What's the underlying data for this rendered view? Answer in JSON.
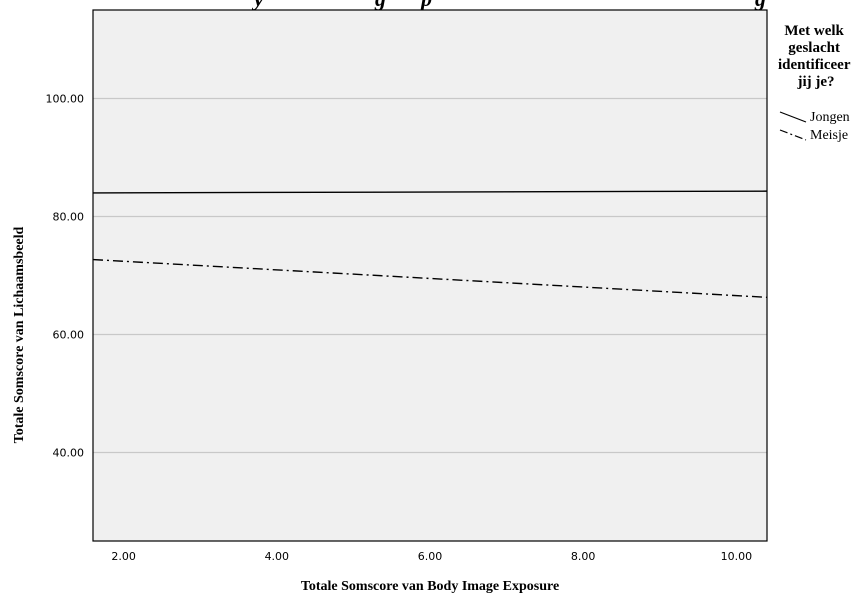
{
  "chart_data": {
    "type": "line",
    "title_fragment_left": "y",
    "title_fragment_mid_a": "g",
    "title_fragment_mid_b": "p",
    "title_fragment_right": "g",
    "xlabel": "Totale Somscore van Body Image Exposure",
    "ylabel": "Totale Somscore van Lichaamsbeeld",
    "xlim": [
      1.6,
      10.4
    ],
    "ylim": [
      25,
      115
    ],
    "x_ticks": [
      "2.00",
      "4.00",
      "6.00",
      "8.00",
      "10.00"
    ],
    "x_tick_values": [
      2,
      4,
      6,
      8,
      10
    ],
    "y_ticks": [
      "40.00",
      "60.00",
      "80.00",
      "100.00"
    ],
    "y_tick_values": [
      40,
      60,
      80,
      100
    ],
    "grid": "horizontal",
    "legend": {
      "title_lines": [
        "Met welk",
        "geslacht",
        "identificeer",
        "jij je?"
      ],
      "placement": "right"
    },
    "series": [
      {
        "name": "Jongen",
        "style": "solid",
        "x": [
          1.6,
          10.4
        ],
        "values": [
          84.0,
          84.3
        ]
      },
      {
        "name": "Meisje",
        "style": "dashdot",
        "x": [
          1.6,
          10.4
        ],
        "values": [
          72.7,
          66.3
        ]
      }
    ],
    "colors": {
      "plot_bg": "#f0f0f0",
      "grid": "#c8c8c8",
      "axis": "#000000",
      "line": "#000000"
    }
  }
}
